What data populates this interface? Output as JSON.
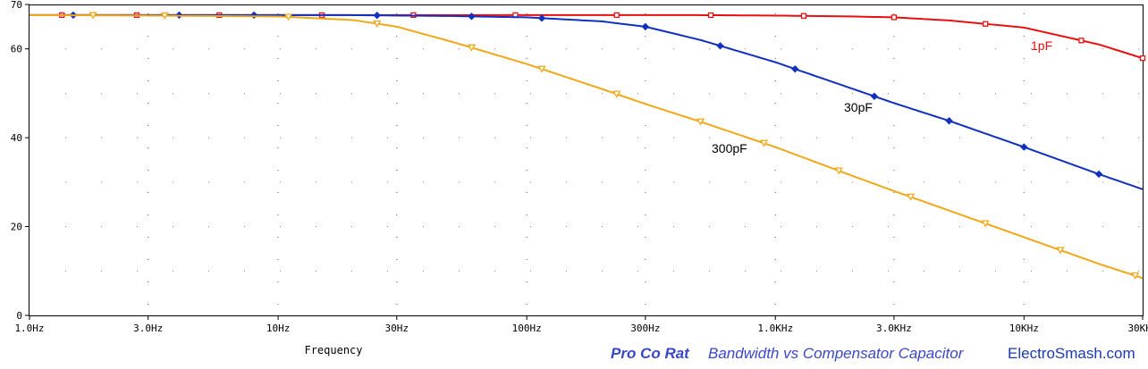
{
  "chart_data": {
    "type": "line",
    "xlabel": "Frequency",
    "ylabel": "",
    "x_scale": "log",
    "xlim": [
      1,
      30000
    ],
    "ylim": [
      0,
      70
    ],
    "grid": "dotted",
    "x_ticks": [
      1,
      3,
      10,
      30,
      100,
      300,
      1000,
      3000,
      10000,
      30000
    ],
    "x_tick_labels": [
      "1.0Hz",
      "3.0Hz",
      "10Hz",
      "30Hz",
      "100Hz",
      "300Hz",
      "1.0KHz",
      "3.0KHz",
      "10KHz",
      "30KHz"
    ],
    "y_ticks": [
      0,
      20,
      40,
      60,
      70
    ],
    "y_tick_labels": [
      "0",
      "20",
      "40",
      "60",
      "70"
    ],
    "x": [
      1,
      3,
      10,
      20,
      30,
      50,
      100,
      200,
      300,
      500,
      1000,
      2000,
      3000,
      5000,
      10000,
      20000,
      30000
    ],
    "series": [
      {
        "name": "1pF",
        "color": "#e81010",
        "marker": "square",
        "values": [
          67.6,
          67.6,
          67.6,
          67.6,
          67.6,
          67.6,
          67.6,
          67.6,
          67.6,
          67.6,
          67.5,
          67.3,
          67.1,
          66.4,
          64.8,
          61.0,
          57.9
        ]
      },
      {
        "name": "30pF",
        "color": "#1030c0",
        "marker": "diamond",
        "values": [
          67.6,
          67.6,
          67.6,
          67.6,
          67.5,
          67.4,
          67.1,
          66.2,
          65.0,
          62.0,
          57.0,
          51.2,
          47.8,
          43.8,
          37.9,
          31.8,
          28.4
        ]
      },
      {
        "name": "300pF",
        "color": "#f0a818",
        "marker": "triangle-down",
        "values": [
          67.6,
          67.5,
          67.3,
          66.5,
          65.0,
          61.6,
          56.6,
          51.0,
          47.6,
          43.6,
          37.9,
          31.6,
          28.0,
          23.6,
          17.6,
          11.6,
          8.4
        ]
      }
    ]
  },
  "footer": {
    "left": "Pro Co Rat",
    "middle": "Bandwidth vs Compensator Capacitor",
    "right": "ElectroSmash.com",
    "left_color": "#3a48c8",
    "middle_color": "#3a48c8",
    "right_color": "#1a3ab0"
  }
}
